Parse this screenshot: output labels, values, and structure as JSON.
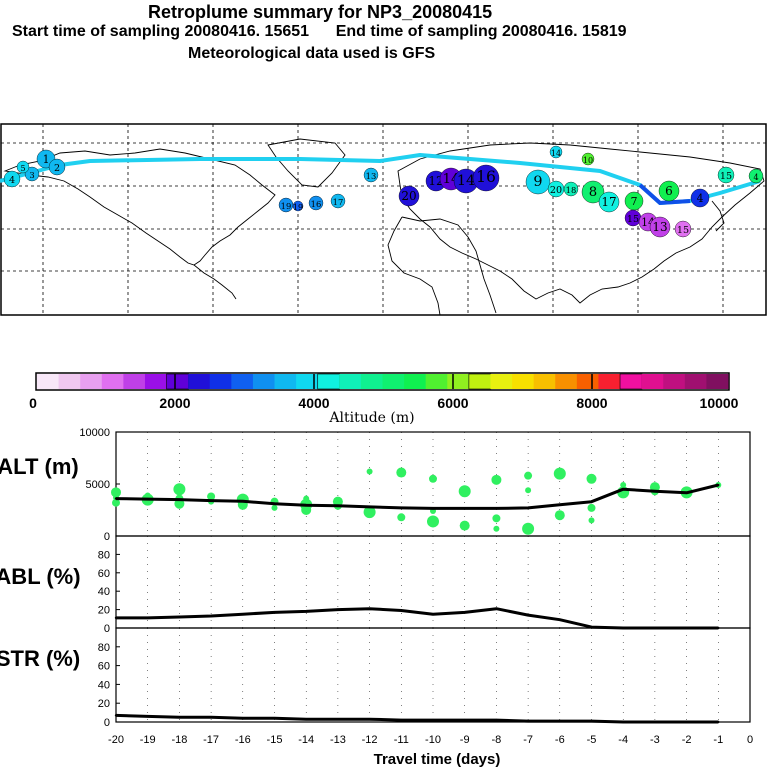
{
  "header": {
    "title": "Retroplume summary for NP3_20080415",
    "subtitle_line1": "Start time of sampling 20080416. 15651      End time of sampling 20080416. 15819",
    "subtitle_line2": "Meteorological data used is GFS"
  },
  "colorbar": {
    "ticks": [
      "0",
      "2000",
      "4000",
      "6000",
      "8000",
      "10000"
    ],
    "title": "Altitude (m)",
    "colors": [
      "#f8e8f8",
      "#f0c8f0",
      "#e8a0f0",
      "#e070f0",
      "#c040e8",
      "#9a10e8",
      "#6000d8",
      "#2010d8",
      "#1030e8",
      "#1060f0",
      "#1090f0",
      "#10b8f0",
      "#10d8f0",
      "#10f0e0",
      "#10f0b8",
      "#10f090",
      "#10f070",
      "#10f050",
      "#50f030",
      "#90f020",
      "#c0f010",
      "#e8f010",
      "#f8e000",
      "#f8c000",
      "#f89000",
      "#f86000",
      "#f82030",
      "#f010a0",
      "#e01090",
      "#c01080",
      "#a01070",
      "#801060"
    ]
  },
  "map": {
    "cluster_labels": [
      "1",
      "2",
      "3",
      "4",
      "5",
      "6",
      "7",
      "8",
      "9",
      "10",
      "11",
      "12",
      "13",
      "14",
      "15",
      "16",
      "17",
      "18",
      "19",
      "20"
    ]
  },
  "chart_data": [
    {
      "type": "line",
      "title": "ALT (m)",
      "xlabel": "Travel time (days)",
      "ylabel": "ALT (m)",
      "ylim": [
        0,
        10000
      ],
      "yticks": [
        "10000",
        "5000",
        "0"
      ],
      "x": [
        -20,
        -19,
        -18,
        -17,
        -16,
        -15,
        -14,
        -13,
        -12,
        -11,
        -10,
        -9,
        -8,
        -7,
        -6,
        -5,
        -4,
        -3,
        -2,
        -1
      ],
      "series": [
        {
          "name": "mean altitude",
          "values": [
            3600,
            3550,
            3500,
            3400,
            3350,
            3100,
            2950,
            2900,
            2800,
            2700,
            2650,
            2650,
            2650,
            2700,
            3000,
            3300,
            4500,
            4300,
            4150,
            4900
          ]
        }
      ],
      "scatter_points": [
        [
          -20,
          3700
        ],
        [
          -20,
          3200
        ],
        [
          -20,
          4200
        ],
        [
          -19,
          3500
        ],
        [
          -19,
          3900
        ],
        [
          -18,
          3600
        ],
        [
          -18,
          3100
        ],
        [
          -18,
          4500
        ],
        [
          -17,
          3300
        ],
        [
          -17,
          3800
        ],
        [
          -16,
          3000
        ],
        [
          -16,
          3500
        ],
        [
          -15,
          2700
        ],
        [
          -15,
          3300
        ],
        [
          -14,
          2500
        ],
        [
          -14,
          3000
        ],
        [
          -14,
          3600
        ],
        [
          -13,
          2900
        ],
        [
          -13,
          3300
        ],
        [
          -12,
          2300
        ],
        [
          -12,
          6200
        ],
        [
          -11,
          1800
        ],
        [
          -11,
          6100
        ],
        [
          -10,
          1400
        ],
        [
          -10,
          2400
        ],
        [
          -10,
          5500
        ],
        [
          -9,
          1000
        ],
        [
          -9,
          4300
        ],
        [
          -8,
          700
        ],
        [
          -8,
          1700
        ],
        [
          -8,
          5400
        ],
        [
          -7,
          700
        ],
        [
          -7,
          4400
        ],
        [
          -7,
          5800
        ],
        [
          -6,
          2000
        ],
        [
          -6,
          6000
        ],
        [
          -5,
          1500
        ],
        [
          -5,
          2700
        ],
        [
          -5,
          5500
        ],
        [
          -4,
          4200
        ],
        [
          -4,
          4900
        ],
        [
          -3,
          4300
        ],
        [
          -3,
          4700
        ],
        [
          -2,
          4200
        ],
        [
          -1,
          4900
        ]
      ],
      "xticks": [
        "-20",
        "-19",
        "-18",
        "-17",
        "-16",
        "-15",
        "-14",
        "-13",
        "-12",
        "-11",
        "-10",
        "-9",
        "-8",
        "-7",
        "-6",
        "-5",
        "-4",
        "-3",
        "-2",
        "-1",
        "0"
      ],
      "grid": true
    },
    {
      "type": "line",
      "title": "ABL (%)",
      "ylabel": "ABL (%)",
      "ylim": [
        0,
        100
      ],
      "yticks": [
        "80",
        "60",
        "40",
        "20",
        "0"
      ],
      "x": [
        -20,
        -19,
        -18,
        -17,
        -16,
        -15,
        -14,
        -13,
        -12,
        -11,
        -10,
        -9,
        -8,
        -7,
        -6,
        -5,
        -4,
        -3,
        -2,
        -1
      ],
      "series": [
        {
          "name": "ABL fraction",
          "values": [
            11,
            11,
            12,
            13,
            15,
            17,
            18,
            20,
            21,
            19,
            15,
            17,
            21,
            14,
            9,
            1,
            0,
            0,
            0,
            0
          ]
        }
      ],
      "grid": true
    },
    {
      "type": "line",
      "title": "STR (%)",
      "ylabel": "STR (%)",
      "ylim": [
        0,
        100
      ],
      "yticks": [
        "80",
        "60",
        "40",
        "20",
        "0"
      ],
      "x": [
        -20,
        -19,
        -18,
        -17,
        -16,
        -15,
        -14,
        -13,
        -12,
        -11,
        -10,
        -9,
        -8,
        -7,
        -6,
        -5,
        -4,
        -3,
        -2,
        -1
      ],
      "series": [
        {
          "name": "stratospheric fraction",
          "values": [
            7,
            6,
            5,
            5,
            4,
            4,
            3,
            3,
            3,
            2,
            2,
            2,
            2,
            1,
            1,
            1,
            0,
            0,
            0,
            0
          ]
        }
      ],
      "grid": true
    }
  ]
}
